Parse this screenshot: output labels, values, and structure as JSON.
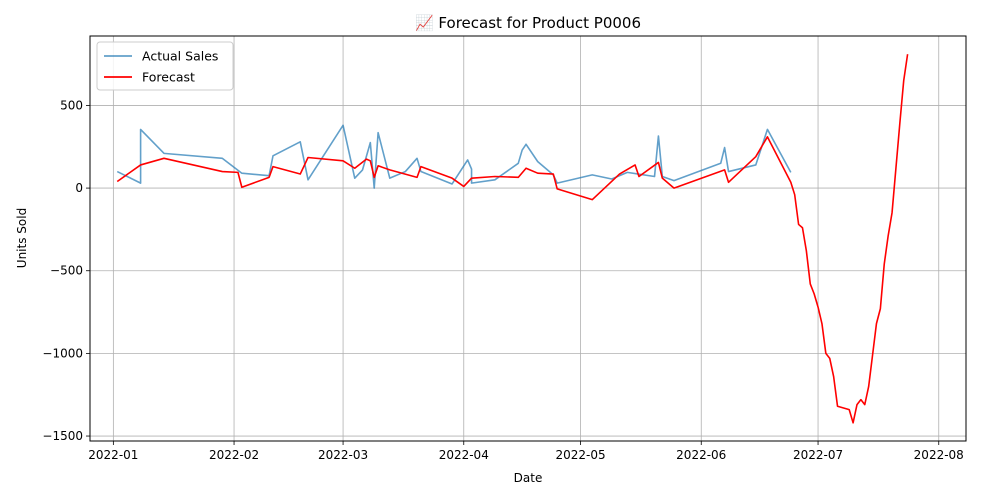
{
  "chart_data": {
    "type": "line",
    "title": "📈 Forecast for Product P0006",
    "xlabel": "Date",
    "ylabel": "Units Sold",
    "x_type": "date",
    "xlim": [
      "2021-12-26",
      "2022-08-08"
    ],
    "ylim": [
      -1530,
      920
    ],
    "x_ticks": [
      "2022-01-01",
      "2022-02-01",
      "2022-03-01",
      "2022-04-01",
      "2022-05-01",
      "2022-06-01",
      "2022-07-01",
      "2022-08-01"
    ],
    "x_tick_labels": [
      "2022-01",
      "2022-02",
      "2022-03",
      "2022-04",
      "2022-05",
      "2022-06",
      "2022-07",
      "2022-08"
    ],
    "y_ticks": [
      500,
      0,
      -500,
      -1000,
      -1500
    ],
    "y_tick_labels": [
      "500",
      "0",
      "−500",
      "−1000",
      "−1500"
    ],
    "grid": true,
    "legend_position": "top-left",
    "series": [
      {
        "name": "Actual Sales",
        "color": "#1f77b4",
        "points": [
          [
            "2022-01-02",
            100
          ],
          [
            "2022-01-08",
            30
          ],
          [
            "2022-01-08",
            355
          ],
          [
            "2022-01-14",
            210
          ],
          [
            "2022-01-29",
            180
          ],
          [
            "2022-02-03",
            90
          ],
          [
            "2022-02-10",
            75
          ],
          [
            "2022-02-11",
            195
          ],
          [
            "2022-02-18",
            280
          ],
          [
            "2022-02-20",
            50
          ],
          [
            "2022-03-01",
            380
          ],
          [
            "2022-03-04",
            60
          ],
          [
            "2022-03-06",
            110
          ],
          [
            "2022-03-08",
            275
          ],
          [
            "2022-03-09",
            0
          ],
          [
            "2022-03-10",
            335
          ],
          [
            "2022-03-13",
            60
          ],
          [
            "2022-03-17",
            100
          ],
          [
            "2022-03-20",
            180
          ],
          [
            "2022-03-21",
            100
          ],
          [
            "2022-03-29",
            25
          ],
          [
            "2022-04-02",
            170
          ],
          [
            "2022-04-03",
            115
          ],
          [
            "2022-04-03",
            30
          ],
          [
            "2022-04-09",
            50
          ],
          [
            "2022-04-15",
            150
          ],
          [
            "2022-04-16",
            230
          ],
          [
            "2022-04-17",
            265
          ],
          [
            "2022-04-20",
            160
          ],
          [
            "2022-04-24",
            80
          ],
          [
            "2022-04-25",
            30
          ],
          [
            "2022-05-04",
            80
          ],
          [
            "2022-05-09",
            55
          ],
          [
            "2022-05-13",
            95
          ],
          [
            "2022-05-20",
            70
          ],
          [
            "2022-05-21",
            315
          ],
          [
            "2022-05-22",
            70
          ],
          [
            "2022-05-25",
            45
          ],
          [
            "2022-06-06",
            150
          ],
          [
            "2022-06-07",
            245
          ],
          [
            "2022-06-08",
            100
          ],
          [
            "2022-06-15",
            140
          ],
          [
            "2022-06-18",
            355
          ],
          [
            "2022-06-24",
            95
          ]
        ]
      },
      {
        "name": "Forecast",
        "color": "#ff0000",
        "points": [
          [
            "2022-01-02",
            40
          ],
          [
            "2022-01-08",
            140
          ],
          [
            "2022-01-14",
            180
          ],
          [
            "2022-01-29",
            100
          ],
          [
            "2022-02-02",
            95
          ],
          [
            "2022-02-03",
            5
          ],
          [
            "2022-02-10",
            65
          ],
          [
            "2022-02-11",
            130
          ],
          [
            "2022-02-18",
            85
          ],
          [
            "2022-02-20",
            185
          ],
          [
            "2022-03-01",
            165
          ],
          [
            "2022-03-04",
            120
          ],
          [
            "2022-03-07",
            175
          ],
          [
            "2022-03-08",
            165
          ],
          [
            "2022-03-09",
            65
          ],
          [
            "2022-03-10",
            135
          ],
          [
            "2022-03-13",
            110
          ],
          [
            "2022-03-20",
            65
          ],
          [
            "2022-03-21",
            130
          ],
          [
            "2022-03-29",
            60
          ],
          [
            "2022-04-01",
            10
          ],
          [
            "2022-04-03",
            60
          ],
          [
            "2022-04-09",
            70
          ],
          [
            "2022-04-15",
            65
          ],
          [
            "2022-04-17",
            120
          ],
          [
            "2022-04-20",
            90
          ],
          [
            "2022-04-24",
            85
          ],
          [
            "2022-04-25",
            -5
          ],
          [
            "2022-05-04",
            -70
          ],
          [
            "2022-05-11",
            85
          ],
          [
            "2022-05-15",
            140
          ],
          [
            "2022-05-16",
            70
          ],
          [
            "2022-05-21",
            155
          ],
          [
            "2022-05-22",
            60
          ],
          [
            "2022-05-25",
            0
          ],
          [
            "2022-06-07",
            110
          ],
          [
            "2022-06-08",
            35
          ],
          [
            "2022-06-15",
            190
          ],
          [
            "2022-06-18",
            310
          ],
          [
            "2022-06-24",
            35
          ],
          [
            "2022-06-25",
            -40
          ],
          [
            "2022-06-26",
            -220
          ],
          [
            "2022-06-27",
            -240
          ],
          [
            "2022-06-28",
            -380
          ],
          [
            "2022-06-29",
            -580
          ],
          [
            "2022-06-30",
            -640
          ],
          [
            "2022-07-01",
            -720
          ],
          [
            "2022-07-02",
            -820
          ],
          [
            "2022-07-03",
            -1000
          ],
          [
            "2022-07-04",
            -1030
          ],
          [
            "2022-07-05",
            -1140
          ],
          [
            "2022-07-06",
            -1320
          ],
          [
            "2022-07-09",
            -1340
          ],
          [
            "2022-07-10",
            -1420
          ],
          [
            "2022-07-11",
            -1310
          ],
          [
            "2022-07-12",
            -1280
          ],
          [
            "2022-07-13",
            -1310
          ],
          [
            "2022-07-14",
            -1200
          ],
          [
            "2022-07-15",
            -1010
          ],
          [
            "2022-07-16",
            -820
          ],
          [
            "2022-07-17",
            -730
          ],
          [
            "2022-07-18",
            -460
          ],
          [
            "2022-07-19",
            -290
          ],
          [
            "2022-07-20",
            -150
          ],
          [
            "2022-07-21",
            120
          ],
          [
            "2022-07-22",
            390
          ],
          [
            "2022-07-23",
            650
          ],
          [
            "2022-07-24",
            810
          ]
        ]
      }
    ]
  }
}
